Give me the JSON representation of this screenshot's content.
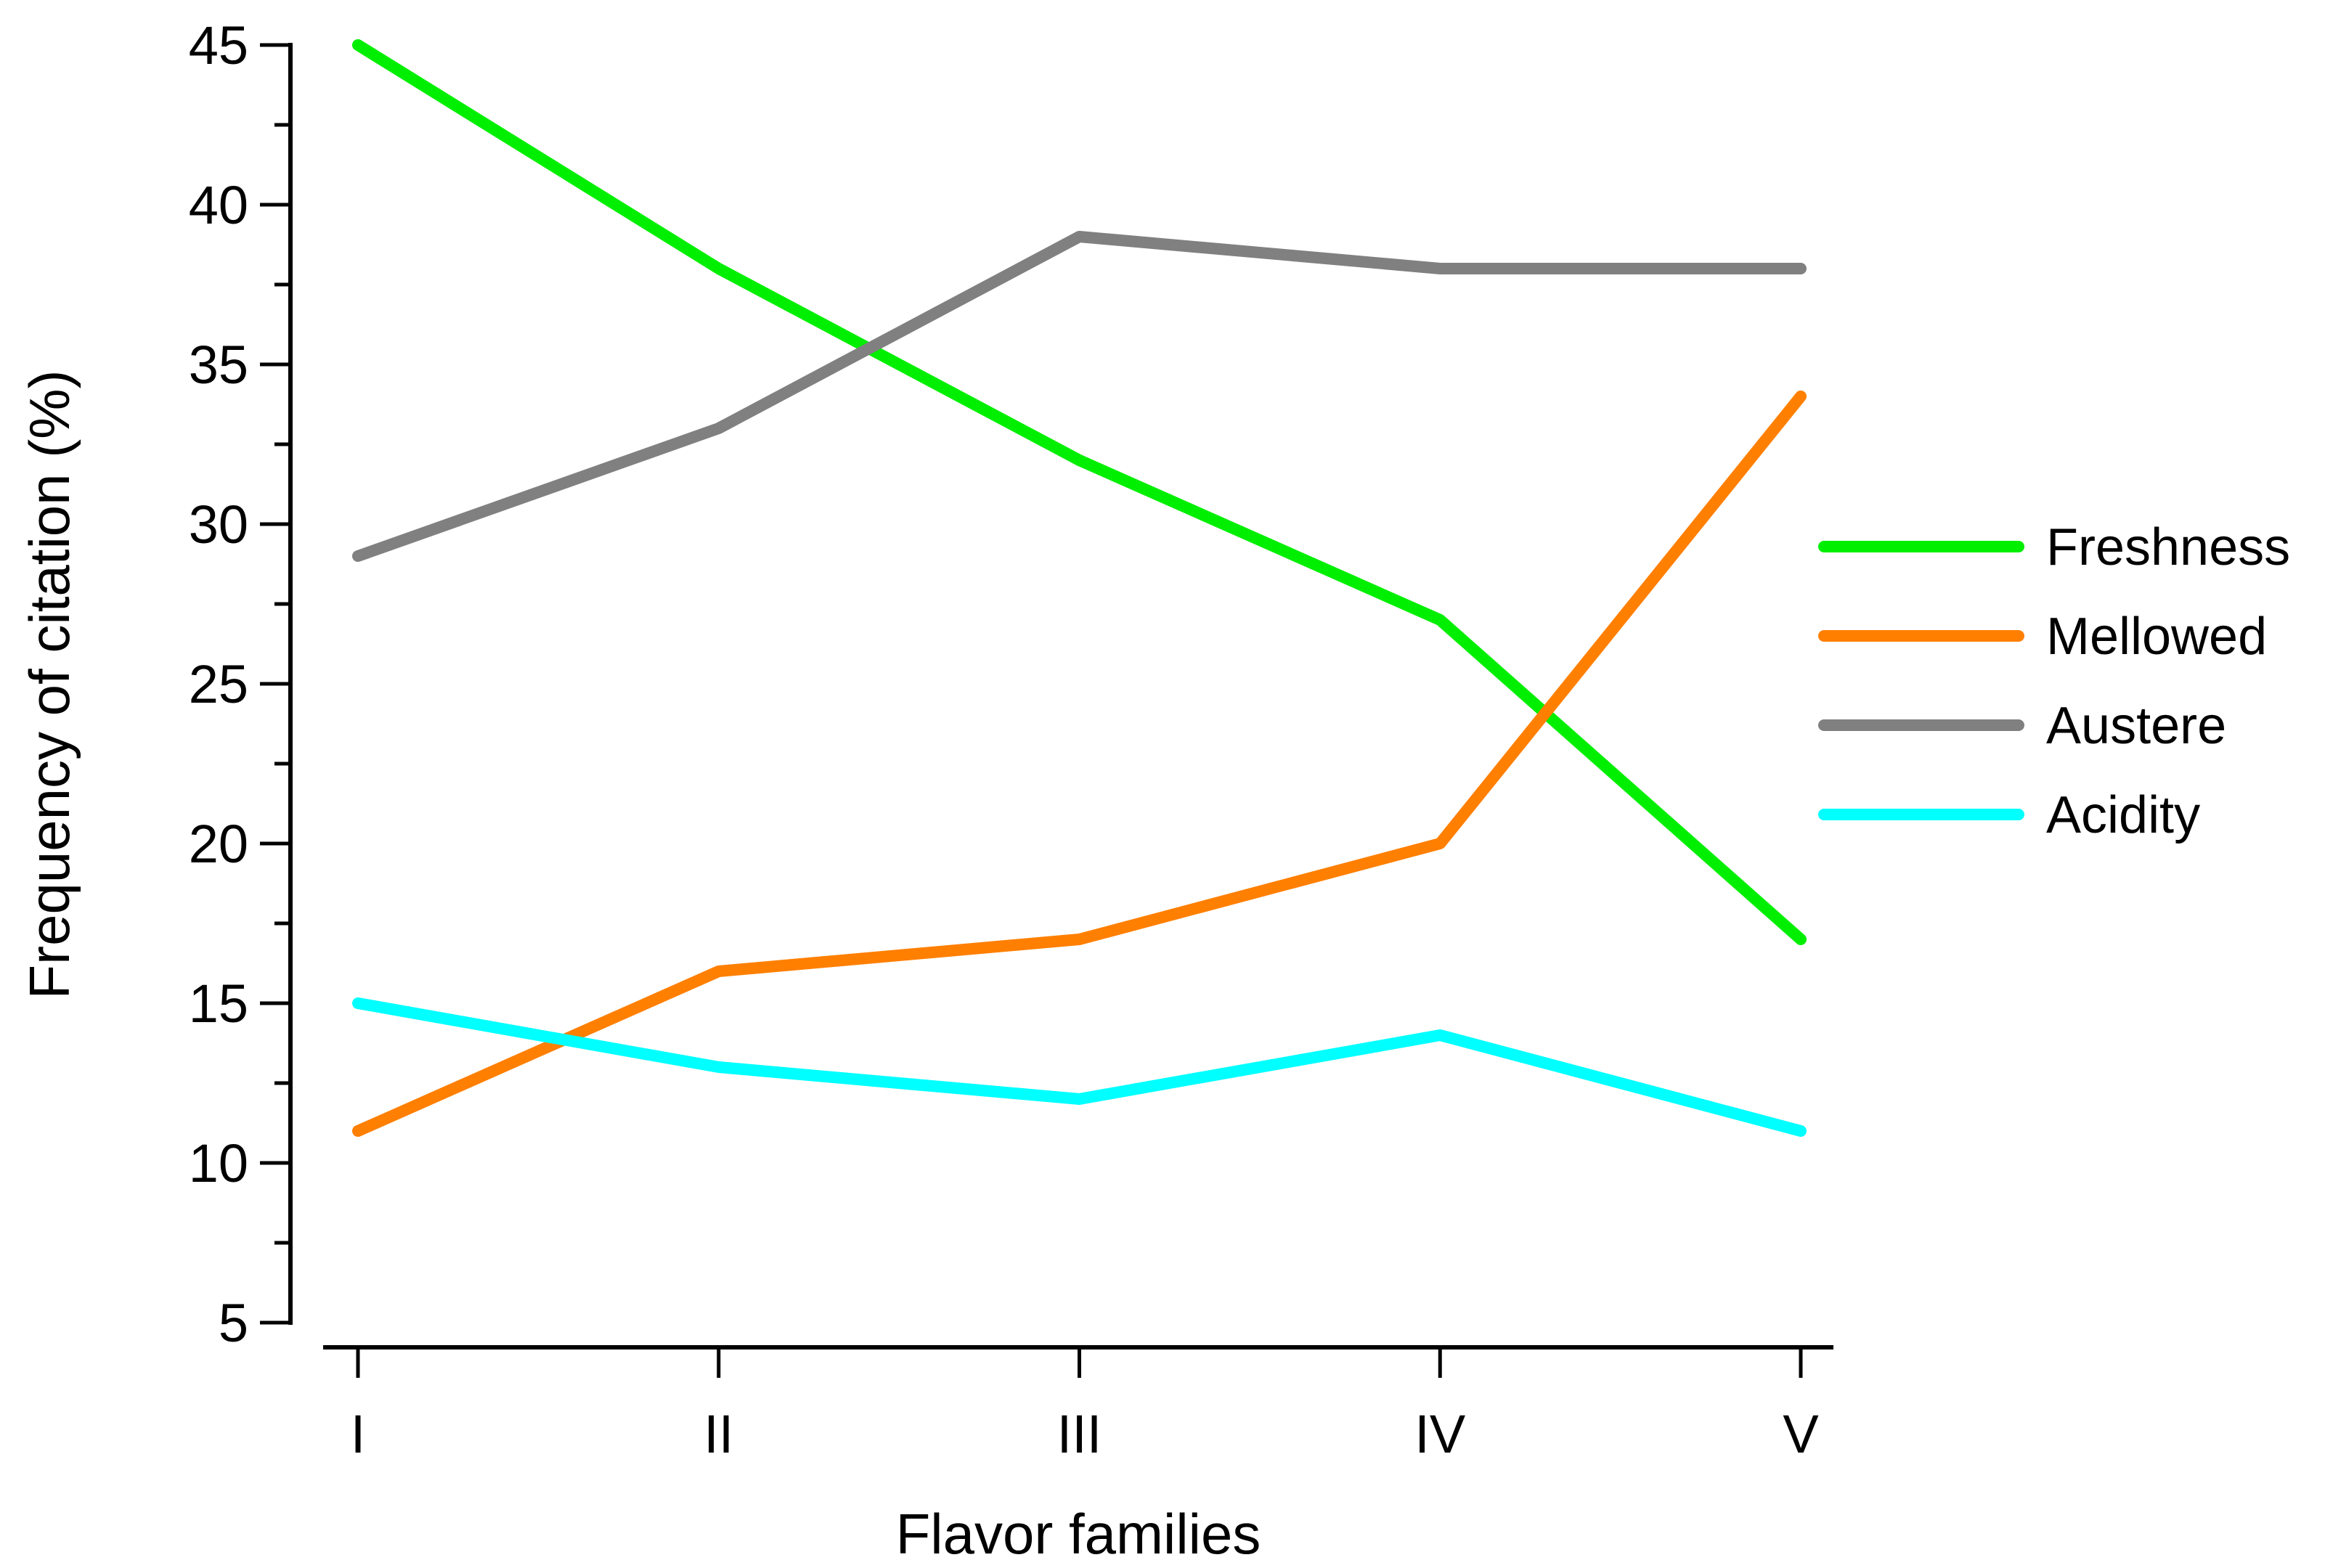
{
  "chart_data": {
    "type": "line",
    "title": "",
    "xlabel": "Flavor families",
    "ylabel": "Frequency of citation (%)",
    "categories": [
      "I",
      "II",
      "III",
      "IV",
      "V"
    ],
    "ylim": [
      5,
      45
    ],
    "yticks": [
      5,
      10,
      15,
      20,
      25,
      30,
      35,
      40,
      45
    ],
    "grid": false,
    "legend_position": "right",
    "series": [
      {
        "name": "Freshness",
        "color": "#00ee00",
        "values": [
          45,
          38,
          32,
          27,
          17
        ]
      },
      {
        "name": "Mellowed",
        "color": "#ff7f00",
        "values": [
          11,
          16,
          17,
          20,
          34
        ]
      },
      {
        "name": "Austere",
        "color": "#808080",
        "values": [
          29,
          33,
          39,
          38,
          38
        ]
      },
      {
        "name": "Acidity",
        "color": "#00ffff",
        "values": [
          15,
          13,
          12,
          14,
          11
        ]
      }
    ]
  }
}
